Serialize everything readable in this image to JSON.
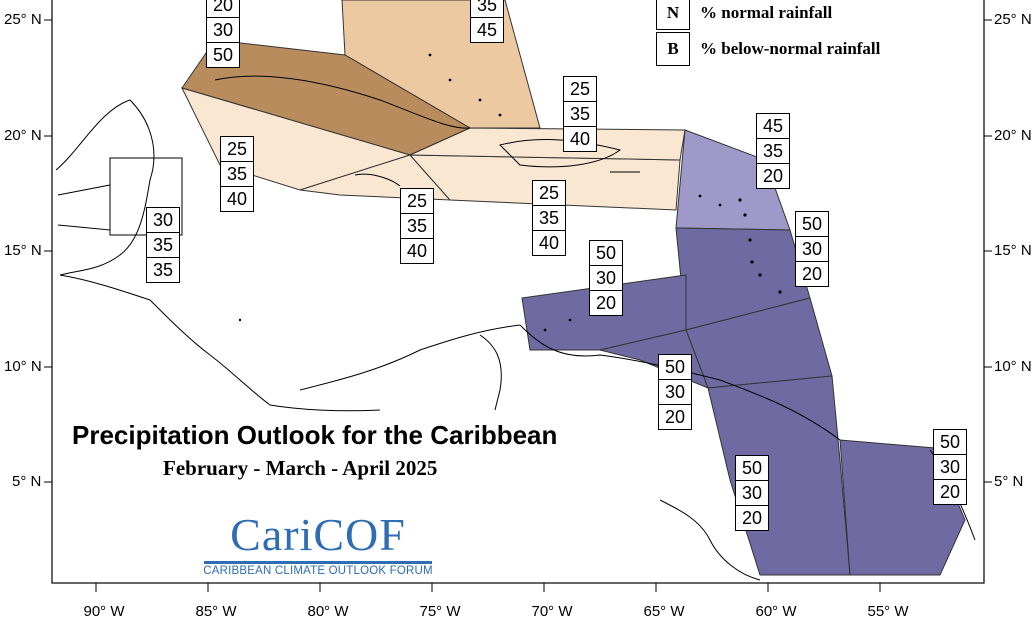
{
  "title": "Precipitation Outlook for the Caribbean",
  "subtitle": "February - March - April 2025",
  "legend": [
    {
      "key": "N",
      "text": "% normal rainfall"
    },
    {
      "key": "B",
      "text": "% below-normal rainfall"
    }
  ],
  "logo": {
    "name": "CariCOF",
    "tagline": "CARIBBEAN CLIMATE OUTLOOK FORUM"
  },
  "lat_labels": [
    "25° N",
    "20° N",
    "15° N",
    "10° N",
    "5° N"
  ],
  "lon_labels": [
    "90° W",
    "85° W",
    "80° W",
    "75° W",
    "70° W",
    "65° W",
    "60° W",
    "55° W"
  ],
  "colors": {
    "below_normal_light": "#f9e7d2",
    "below_normal_medium": "#edc9a2",
    "below_normal_dark": "#b88c5c",
    "above_normal_light": "#9e99c9",
    "above_normal_dark": "#6f6ba2"
  },
  "regions": [
    {
      "id": "top-partial-left",
      "values": [
        "20",
        "30",
        "50"
      ]
    },
    {
      "id": "bahamas",
      "values": [
        "35",
        "45"
      ]
    },
    {
      "id": "yucatan-belize",
      "values": [
        "30",
        "35",
        "35"
      ]
    },
    {
      "id": "cayman-jamaica-west",
      "values": [
        "25",
        "35",
        "40"
      ]
    },
    {
      "id": "jamaica",
      "values": [
        "25",
        "35",
        "40"
      ]
    },
    {
      "id": "hispaniola-south",
      "values": [
        "25",
        "35",
        "40"
      ]
    },
    {
      "id": "hispaniola-puertorico",
      "values": [
        "25",
        "35",
        "40"
      ]
    },
    {
      "id": "leeward-islands",
      "values": [
        "45",
        "35",
        "20"
      ]
    },
    {
      "id": "windward-islands",
      "values": [
        "50",
        "30",
        "20"
      ]
    },
    {
      "id": "abc-islands",
      "values": [
        "50",
        "30",
        "20"
      ]
    },
    {
      "id": "trinidad-tobago",
      "values": [
        "50",
        "30",
        "20"
      ]
    },
    {
      "id": "guyana",
      "values": [
        "50",
        "30",
        "20"
      ]
    },
    {
      "id": "french-guiana",
      "values": [
        "50",
        "30",
        "20"
      ]
    }
  ]
}
